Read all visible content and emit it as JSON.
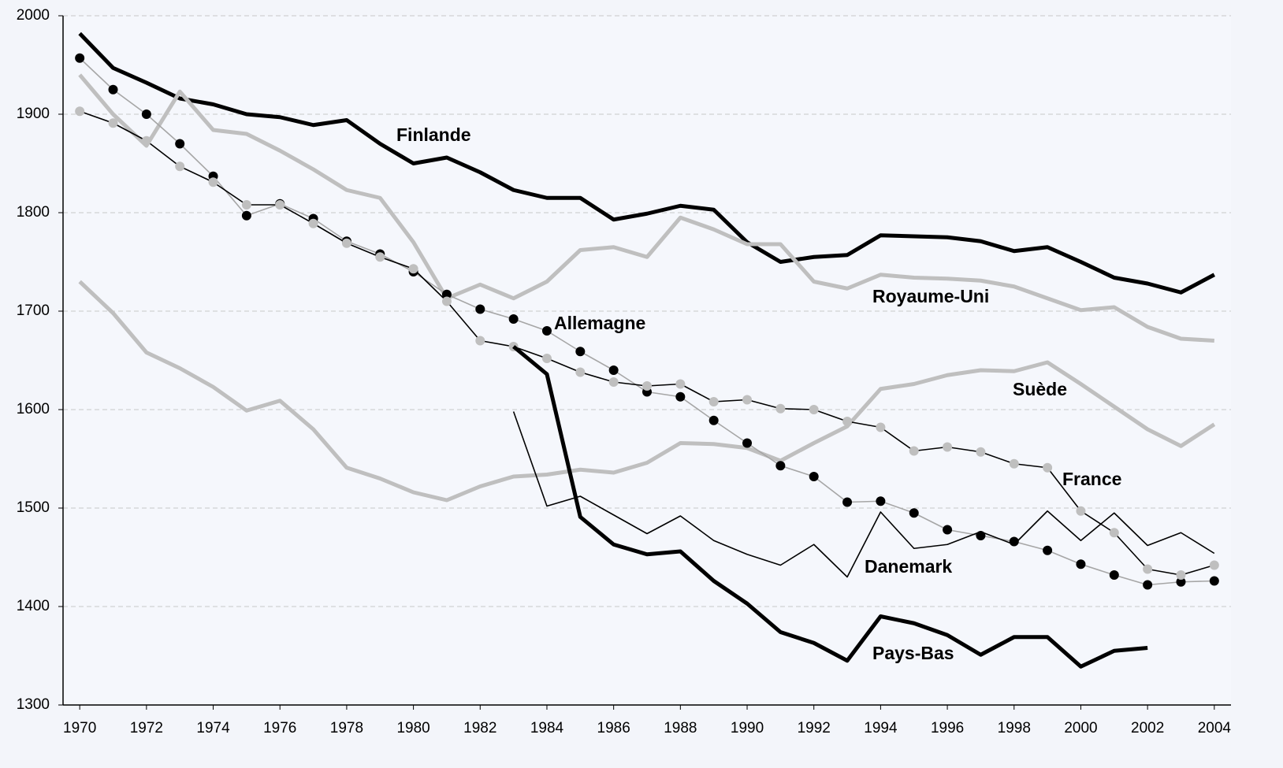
{
  "chart_data": {
    "type": "line",
    "x": [
      1970,
      1971,
      1972,
      1973,
      1974,
      1975,
      1976,
      1977,
      1978,
      1979,
      1980,
      1981,
      1982,
      1983,
      1984,
      1985,
      1986,
      1987,
      1988,
      1989,
      1990,
      1991,
      1992,
      1993,
      1994,
      1995,
      1996,
      1997,
      1998,
      1999,
      2000,
      2001,
      2002,
      2003,
      2004
    ],
    "xlim": [
      1969.5,
      2004.5
    ],
    "xticks": [
      1970,
      1972,
      1974,
      1976,
      1978,
      1980,
      1982,
      1984,
      1986,
      1988,
      1990,
      1992,
      1994,
      1996,
      1998,
      2000,
      2002,
      2004
    ],
    "ylim": [
      1300,
      2000
    ],
    "yticks": [
      1300,
      1400,
      1500,
      1600,
      1700,
      1800,
      1900,
      2000
    ],
    "grid": true,
    "series": [
      {
        "name": "Finlande",
        "color": "#000000",
        "style": "thick",
        "values": [
          1982,
          1947,
          1932,
          1916,
          1910,
          1900,
          1897,
          1889,
          1894,
          1870,
          1850,
          1856,
          1841,
          1823,
          1815,
          1815,
          1793,
          1799,
          1807,
          1803,
          1770,
          1750,
          1755,
          1757,
          1777,
          1776,
          1775,
          1771,
          1761,
          1765,
          1750,
          1734,
          1728,
          1719,
          1737
        ]
      },
      {
        "name": "Royaume-Uni",
        "color": "#bfbfbf",
        "style": "thick",
        "values": [
          1940,
          1900,
          1868,
          1923,
          1884,
          1880,
          1863,
          1844,
          1823,
          1815,
          1770,
          1713,
          1727,
          1713,
          1730,
          1762,
          1765,
          1755,
          1795,
          1783,
          1768,
          1768,
          1730,
          1723,
          1737,
          1734,
          1733,
          1731,
          1725,
          1713,
          1701,
          1704,
          1684,
          1672,
          1670
        ]
      },
      {
        "name": "Suède",
        "color": "#bfbfbf",
        "style": "thick",
        "values": [
          1730,
          1698,
          1658,
          1642,
          1623,
          1599,
          1609,
          1580,
          1541,
          1530,
          1516,
          1508,
          1522,
          1532,
          1534,
          1539,
          1536,
          1546,
          1566,
          1565,
          1561,
          1548,
          1566,
          1583,
          1621,
          1626,
          1635,
          1640,
          1639,
          1648,
          1626,
          1603,
          1580,
          1563,
          1585
        ]
      },
      {
        "name": "Allemagne",
        "color": "#a6a6a6",
        "marker_color": "#000000",
        "style": "thin",
        "values": [
          1957,
          1925,
          1900,
          1870,
          1837,
          1797,
          1809,
          1794,
          1771,
          1758,
          1740,
          1717,
          1702,
          1692,
          1680,
          1659,
          1640,
          1618,
          1613,
          1589,
          1566,
          1543,
          1532,
          1506,
          1507,
          1495,
          1478,
          1472,
          1466,
          1457,
          1443,
          1432,
          1422,
          1425,
          1426
        ]
      },
      {
        "name": "France",
        "color": "#000000",
        "marker_color": "#bfbfbf",
        "style": "thin",
        "values": [
          1903,
          1891,
          1873,
          1847,
          1831,
          1808,
          1808,
          1789,
          1769,
          1755,
          1743,
          1710,
          1670,
          1664,
          1652,
          1638,
          1628,
          1624,
          1626,
          1608,
          1610,
          1601,
          1600,
          1588,
          1582,
          1558,
          1562,
          1557,
          1545,
          1541,
          1497,
          1475,
          1438,
          1432,
          1442
        ]
      },
      {
        "name": "Pays-Bas",
        "color": "#000000",
        "style": "thick",
        "values": [
          null,
          null,
          null,
          null,
          null,
          null,
          null,
          null,
          null,
          null,
          null,
          null,
          null,
          1664,
          1636,
          1491,
          1463,
          1453,
          1456,
          1426,
          1403,
          1374,
          1363,
          1345,
          1390,
          1383,
          1371,
          1351,
          1369,
          1369,
          1339,
          1355,
          1358,
          null,
          null
        ]
      },
      {
        "name": "Danemark",
        "color": "#000000",
        "style": "thin",
        "values": [
          null,
          null,
          null,
          null,
          null,
          null,
          null,
          null,
          null,
          null,
          null,
          null,
          null,
          1598,
          1502,
          1512,
          1493,
          1474,
          1492,
          1467,
          1453,
          1442,
          1463,
          1430,
          1496,
          1459,
          1463,
          1476,
          1463,
          1497,
          1467,
          1495,
          1462,
          1475,
          1454
        ]
      }
    ]
  }
}
